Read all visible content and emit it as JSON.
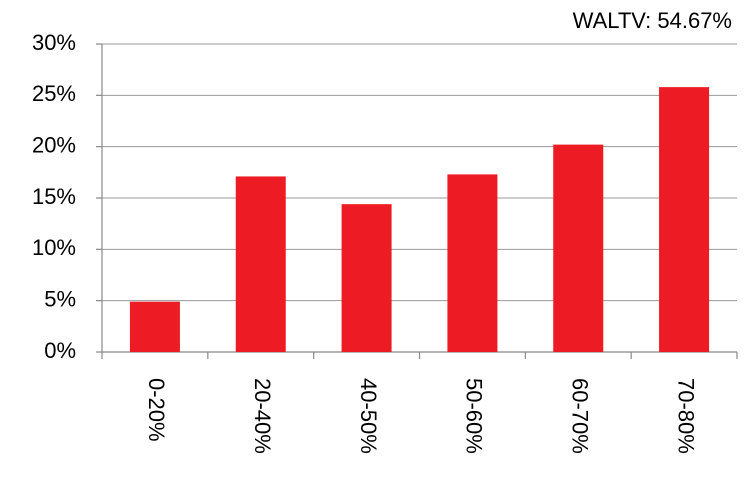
{
  "chart_data": {
    "type": "bar",
    "annotation": "WALTV: 54.67%",
    "categories": [
      "0-20%",
      "20-40%",
      "40-50%",
      "50-60%",
      "60-70%",
      "70-80%"
    ],
    "values": [
      4.9,
      17.1,
      14.4,
      17.3,
      20.2,
      25.8
    ],
    "color": "#ed1c24",
    "ylim": [
      0,
      30
    ],
    "yticks": [
      {
        "value": 0,
        "label": "0%"
      },
      {
        "value": 5,
        "label": "5%"
      },
      {
        "value": 10,
        "label": "10%"
      },
      {
        "value": 15,
        "label": "15%"
      },
      {
        "value": 20,
        "label": "20%"
      },
      {
        "value": 25,
        "label": "25%"
      },
      {
        "value": 30,
        "label": "30%"
      }
    ],
    "grid": true
  }
}
